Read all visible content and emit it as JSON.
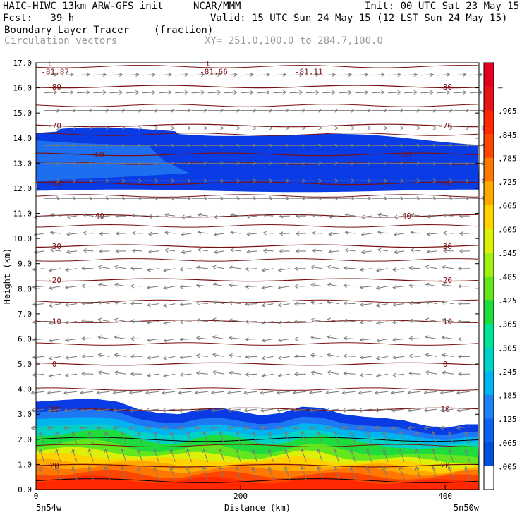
{
  "header": {
    "model": "HAIC-HIWC 13km ARW-GFS init",
    "center": "NCAR/MMM",
    "init": "Init: 00 UTC Sat 23 May 15",
    "fcst": "Fcst:   39 h",
    "valid": "Valid: 15 UTC Sun 24 May 15 (12 LST Sun 24 May 15)",
    "field": "Boundary Layer Tracer",
    "units": "(fraction)",
    "vectors": "Circulation vectors",
    "xy": "XY= 251.0,100.0 to 284.7,100.0"
  },
  "chart_data": {
    "type": "heatmap",
    "xlabel": "Distance (km)",
    "ylabel": "Height (km)",
    "xlim": [
      0,
      433
    ],
    "ylim": [
      0,
      17
    ],
    "x_ticks": [
      "0",
      "200",
      "400"
    ],
    "y_ticks": [
      "0.0",
      "1.0",
      "2.0",
      "3.0",
      "4.0",
      "5.0",
      "6.0",
      "7.0",
      "8.0",
      "9.0",
      "10.0",
      "11.0",
      "12.0",
      "13.0",
      "14.0",
      "15.0",
      "16.0",
      "17.0"
    ],
    "x_end_labels": {
      "left": "5n54w",
      "right": "5n50w"
    },
    "colorbar": {
      "labels": [
        ".005",
        ".065",
        ".125",
        ".185",
        ".245",
        ".305",
        ".365",
        ".425",
        ".485",
        ".545",
        ".605",
        ".665",
        ".725",
        ".785",
        ".845",
        ".905",
        "–"
      ],
      "colors": [
        "#ffffff",
        "#0050dc",
        "#0a64f0",
        "#1e82f5",
        "#00b4f0",
        "#00d2c8",
        "#00e696",
        "#1edc3c",
        "#64e61e",
        "#a0f014",
        "#dcf00a",
        "#ffd200",
        "#ffaa00",
        "#ff7800",
        "#ff4600",
        "#ff2800",
        "#e61414",
        "#e6001e"
      ]
    },
    "temperature_contours": [
      {
        "label": "20",
        "height": 0.95
      },
      {
        "label": "10",
        "height": 3.2
      },
      {
        "label": "0",
        "height": 5.0
      },
      {
        "label": "-10",
        "height": 6.7
      },
      {
        "label": "-20",
        "height": 8.35
      },
      {
        "label": "-30",
        "height": 9.7
      },
      {
        "label": "-40",
        "height": 10.9
      },
      {
        "label": "-50",
        "height": 12.2
      },
      {
        "label": "-60",
        "height": 13.35
      },
      {
        "label": "-70",
        "height": 14.5
      },
      {
        "label": "-80",
        "height": 16.05
      }
    ],
    "min_labels": [
      {
        "text": "-81.87",
        "x": 5,
        "y": 16.65
      },
      {
        "text": "-81.66",
        "x": 160,
        "y": 16.65
      },
      {
        "text": "-81.11",
        "x": 253,
        "y": 16.65
      }
    ],
    "upper_tracer_layer": {
      "bottom_km": 11.9,
      "top_km": 14.2,
      "value_range": [
        0.005,
        0.125
      ]
    },
    "boundary_layer": {
      "x_km": [
        0,
        20,
        40,
        60,
        80,
        100,
        120,
        140,
        160,
        180,
        200,
        220,
        240,
        260,
        280,
        300,
        320,
        340,
        360,
        380,
        400,
        420,
        433
      ],
      "top_km": [
        3.5,
        3.55,
        3.6,
        3.6,
        3.5,
        3.2,
        3.05,
        3.0,
        3.2,
        3.25,
        3.1,
        2.95,
        3.05,
        3.3,
        3.25,
        3.0,
        2.9,
        2.85,
        2.75,
        2.55,
        2.45,
        2.6,
        2.6
      ],
      "surface_value": 0.905
    }
  }
}
